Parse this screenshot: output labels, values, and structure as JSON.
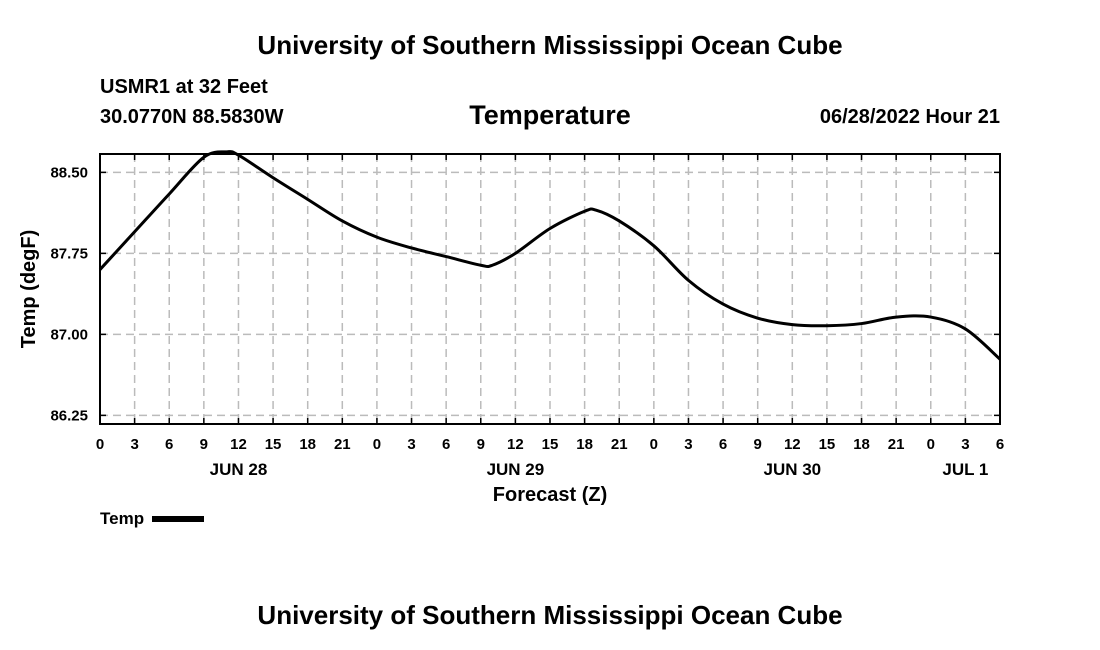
{
  "header": {
    "title": "University of Southern Mississippi Ocean Cube",
    "station": "USMR1 at 32 Feet",
    "coords": "30.0770N  88.5830W",
    "variable": "Temperature",
    "datetime": "06/28/2022 Hour 21"
  },
  "footer": {
    "title": "University of Southern Mississippi Ocean Cube"
  },
  "legend": {
    "label": "Temp"
  },
  "chart_data": {
    "type": "line",
    "title": "Temperature",
    "xlabel": "Forecast (Z)",
    "ylabel": "Temp (degF)",
    "xlim_hours": [
      0,
      78
    ],
    "ylim": [
      86.17,
      88.67
    ],
    "y_ticks": [
      86.25,
      87.0,
      87.75,
      88.5
    ],
    "y_tick_labels": [
      "86.25",
      "87.00",
      "87.75",
      "88.50"
    ],
    "x_tick_labels": [
      "0",
      "3",
      "6",
      "9",
      "12",
      "15",
      "18",
      "21",
      "0",
      "3",
      "6",
      "9",
      "12",
      "15",
      "18",
      "21",
      "0",
      "3",
      "6",
      "9",
      "12",
      "15",
      "18",
      "21",
      "0",
      "3",
      "6"
    ],
    "day_labels": [
      {
        "label": "JUN 28",
        "hour": 12
      },
      {
        "label": "JUN 29",
        "hour": 36
      },
      {
        "label": "JUN 30",
        "hour": 60
      },
      {
        "label": "JUL 1",
        "hour": 75
      }
    ],
    "grid": true,
    "series": [
      {
        "name": "Temp",
        "color": "#000000",
        "x": [
          0,
          3,
          6,
          9,
          11,
          12,
          15,
          18,
          21,
          24,
          27,
          30,
          33,
          34,
          36,
          39,
          42,
          43,
          45,
          48,
          51,
          54,
          57,
          60,
          63,
          66,
          69,
          72,
          75,
          78
        ],
        "values": [
          87.6,
          87.95,
          88.3,
          88.64,
          88.69,
          88.66,
          88.45,
          88.25,
          88.05,
          87.9,
          87.8,
          87.72,
          87.64,
          87.64,
          87.75,
          87.98,
          88.14,
          88.15,
          88.05,
          87.82,
          87.5,
          87.28,
          87.15,
          87.09,
          87.08,
          87.1,
          87.16,
          87.16,
          87.05,
          86.77
        ]
      }
    ]
  }
}
